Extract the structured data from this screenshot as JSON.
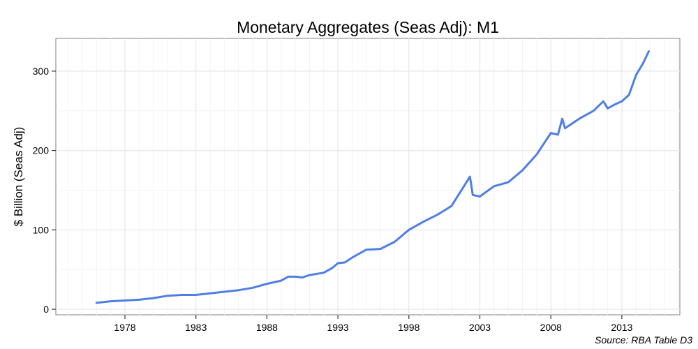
{
  "chart_data": {
    "type": "line",
    "title": "Monetary Aggregates (Seas Adj): M1",
    "xlabel": "",
    "ylabel": "$ Billion (Seas Adj)",
    "source": "Source: RBA Table D3",
    "xlim": [
      1973.9,
      2017.9
    ],
    "ylim": [
      -4,
      339
    ],
    "x_ticks": [
      1978,
      1983,
      1988,
      1993,
      1998,
      2003,
      2008,
      2013
    ],
    "y_ticks": [
      0,
      100,
      200,
      300
    ],
    "grid": true,
    "legend": null,
    "series": [
      {
        "name": "M1",
        "color": "#4f7ee3",
        "x": [
          1976.0,
          1977.0,
          1978.0,
          1979.0,
          1980.0,
          1981.0,
          1982.0,
          1983.0,
          1984.0,
          1985.0,
          1986.0,
          1987.0,
          1988.0,
          1989.0,
          1989.5,
          1990.0,
          1990.5,
          1991.0,
          1992.0,
          1992.6,
          1993.0,
          1993.5,
          1994.0,
          1995.0,
          1996.0,
          1997.0,
          1998.0,
          1999.0,
          2000.0,
          2001.0,
          2002.3,
          2002.5,
          2003.0,
          2004.0,
          2005.0,
          2006.0,
          2007.0,
          2008.0,
          2008.5,
          2008.8,
          2009.0,
          2010.0,
          2011.0,
          2011.7,
          2012.0,
          2012.5,
          2013.0,
          2013.5,
          2014.0,
          2014.5,
          2014.9
        ],
        "values": [
          8,
          10,
          11,
          12,
          14,
          17,
          18,
          18,
          20,
          22,
          24,
          27,
          32,
          36,
          41,
          41,
          40,
          43,
          46,
          52,
          58,
          59,
          65,
          75,
          76,
          85,
          100,
          110,
          119,
          130,
          167,
          144,
          142,
          155,
          160,
          175,
          195,
          222,
          220,
          240,
          228,
          240,
          250,
          262,
          253,
          258,
          262,
          270,
          295,
          310,
          325
        ]
      }
    ]
  }
}
